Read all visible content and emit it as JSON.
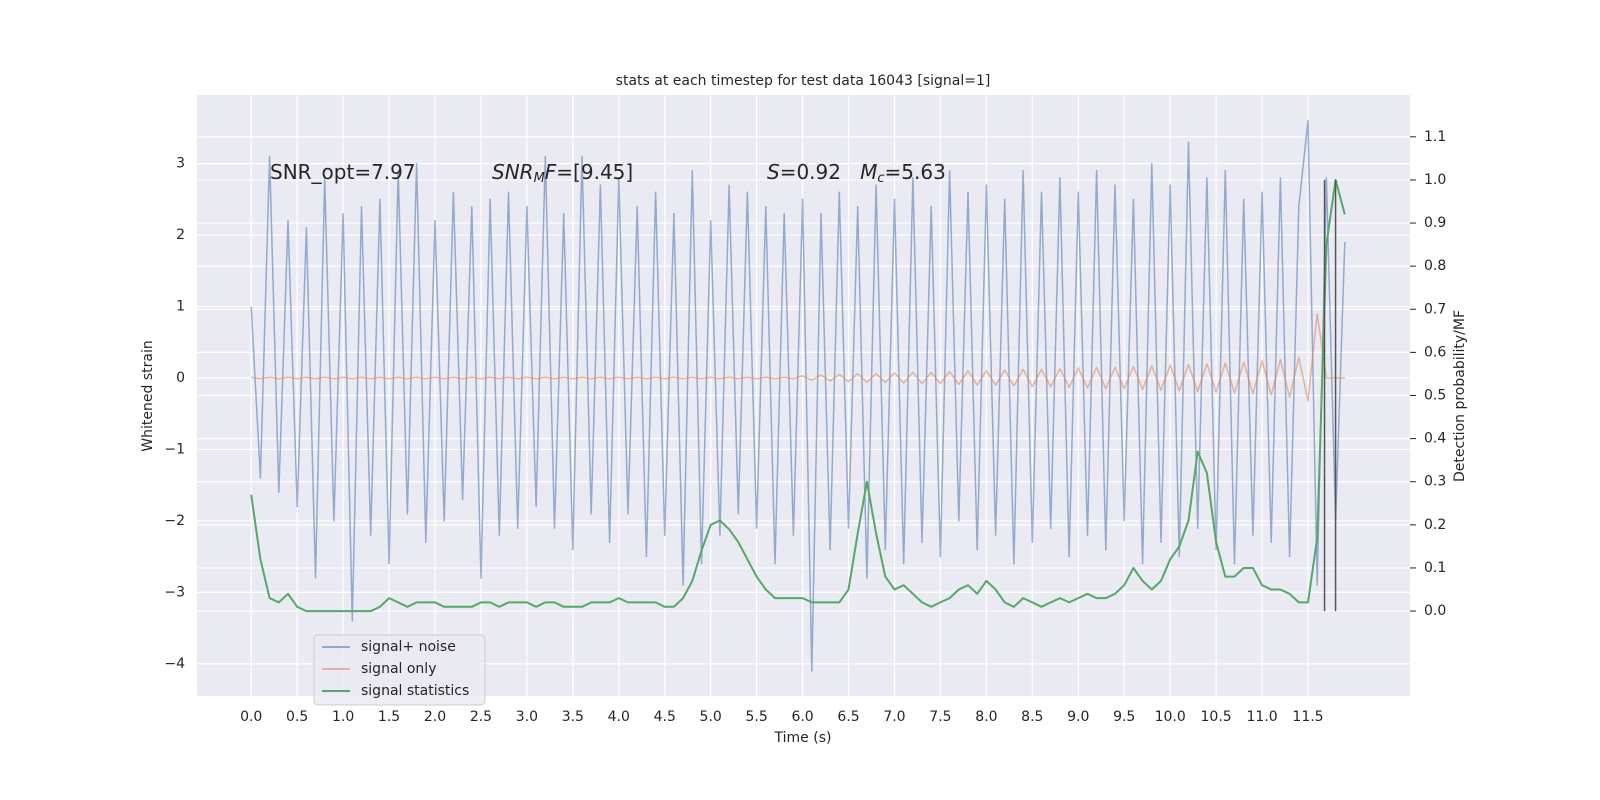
{
  "chart_data": {
    "type": "line",
    "title": "stats at each timestep for test data 16043 [signal=1]",
    "xlabel": "Time (s)",
    "ylabel": "Whitened strain",
    "y2label": "Detection probability/MF",
    "annotations": [
      [
        {
          "text": "SNR_opt=7.97",
          "italic": false,
          "sub": false
        }
      ],
      [
        {
          "text": "SNR",
          "italic": true,
          "sub": false
        },
        {
          "text": "M",
          "italic": true,
          "sub": true
        },
        {
          "text": "F",
          "italic": true,
          "sub": false
        },
        {
          "text": "=[9.45]",
          "italic": false,
          "sub": false
        }
      ],
      [
        {
          "text": "S",
          "italic": true,
          "sub": false
        },
        {
          "text": "=0.92   ",
          "italic": false,
          "sub": false
        },
        {
          "text": "M",
          "italic": true,
          "sub": false
        },
        {
          "text": "c",
          "italic": true,
          "sub": true
        },
        {
          "text": "=5.63",
          "italic": false,
          "sub": false
        }
      ]
    ],
    "x": [
      0.0,
      0.1,
      0.2,
      0.3,
      0.4,
      0.5,
      0.6,
      0.7,
      0.8,
      0.9,
      1.0,
      1.1,
      1.2,
      1.3,
      1.4,
      1.5,
      1.6,
      1.7,
      1.8,
      1.9,
      2.0,
      2.1,
      2.2,
      2.3,
      2.4,
      2.5,
      2.6,
      2.7,
      2.8,
      2.9,
      3.0,
      3.1,
      3.2,
      3.3,
      3.4,
      3.5,
      3.6,
      3.7,
      3.8,
      3.9,
      4.0,
      4.1,
      4.2,
      4.3,
      4.4,
      4.5,
      4.6,
      4.7,
      4.8,
      4.9,
      5.0,
      5.1,
      5.2,
      5.3,
      5.4,
      5.5,
      5.6,
      5.7,
      5.8,
      5.9,
      6.0,
      6.1,
      6.2,
      6.3,
      6.4,
      6.5,
      6.6,
      6.7,
      6.8,
      6.9,
      7.0,
      7.1,
      7.2,
      7.3,
      7.4,
      7.5,
      7.6,
      7.7,
      7.8,
      7.9,
      8.0,
      8.1,
      8.2,
      8.3,
      8.4,
      8.5,
      8.6,
      8.7,
      8.8,
      8.9,
      9.0,
      9.1,
      9.2,
      9.3,
      9.4,
      9.5,
      9.6,
      9.7,
      9.8,
      9.9,
      10.0,
      10.1,
      10.2,
      10.3,
      10.4,
      10.5,
      10.6,
      10.7,
      10.8,
      10.9,
      11.0,
      11.1,
      11.2,
      11.3,
      11.4,
      11.5,
      11.6,
      11.7,
      11.8,
      11.9
    ],
    "series": [
      {
        "name": "signal+ noise",
        "color": "#4c72b0",
        "axis": "y",
        "values": [
          1.0,
          -1.4,
          3.1,
          -1.6,
          2.2,
          -1.8,
          2.1,
          -2.8,
          2.8,
          -2.0,
          2.3,
          -3.4,
          2.4,
          -2.2,
          2.5,
          -2.6,
          2.9,
          -1.9,
          3.0,
          -2.3,
          2.2,
          -2.0,
          2.6,
          -1.7,
          2.4,
          -2.8,
          2.5,
          -2.2,
          2.6,
          -2.1,
          2.4,
          -1.8,
          3.1,
          -2.1,
          2.3,
          -2.4,
          3.1,
          -1.9,
          2.7,
          -2.3,
          2.8,
          -1.9,
          2.4,
          -2.5,
          2.6,
          -2.2,
          2.3,
          -2.9,
          2.9,
          -2.6,
          2.2,
          -2.2,
          2.7,
          -1.9,
          2.6,
          -2.1,
          2.4,
          -2.6,
          2.3,
          -2.2,
          2.5,
          -4.1,
          2.3,
          -2.4,
          2.6,
          -2.1,
          2.4,
          -2.8,
          2.7,
          -2.4,
          2.5,
          -2.6,
          2.8,
          -2.3,
          2.4,
          -2.5,
          2.9,
          -2.0,
          2.6,
          -2.4,
          2.7,
          -2.2,
          2.5,
          -2.6,
          2.9,
          -2.3,
          2.6,
          -2.1,
          2.8,
          -2.5,
          2.6,
          -2.2,
          2.9,
          -2.4,
          2.7,
          -2.0,
          2.5,
          -2.6,
          3.0,
          -2.3,
          2.7,
          -2.5,
          3.3,
          -2.1,
          2.8,
          -2.4,
          2.9,
          -2.6,
          2.5,
          -2.2,
          2.6,
          -2.3,
          2.8,
          -2.5,
          2.4,
          3.6,
          -2.9,
          2.8,
          -2.0,
          1.9
        ]
      },
      {
        "name": "signal only",
        "color": "#dd8452",
        "axis": "y",
        "values": [
          0.01,
          -0.01,
          0.01,
          -0.01,
          0.01,
          -0.01,
          0.01,
          -0.01,
          0.01,
          -0.01,
          0.01,
          -0.01,
          0.01,
          -0.01,
          0.01,
          -0.01,
          0.01,
          -0.01,
          0.01,
          -0.01,
          0.01,
          -0.01,
          0.01,
          -0.01,
          0.01,
          -0.01,
          0.01,
          -0.01,
          0.01,
          -0.01,
          0.01,
          -0.01,
          0.01,
          -0.01,
          0.01,
          -0.01,
          0.01,
          -0.01,
          0.01,
          -0.01,
          0.01,
          -0.01,
          0.01,
          -0.01,
          0.01,
          -0.01,
          0.01,
          -0.01,
          0.01,
          -0.01,
          0.01,
          -0.01,
          0.01,
          -0.01,
          0.01,
          -0.01,
          0.01,
          -0.01,
          0.01,
          -0.01,
          0.03,
          -0.03,
          0.04,
          -0.04,
          0.05,
          -0.05,
          0.06,
          -0.06,
          0.06,
          -0.06,
          0.07,
          -0.07,
          0.08,
          -0.08,
          0.08,
          -0.08,
          0.09,
          -0.09,
          0.1,
          -0.1,
          0.1,
          -0.1,
          0.11,
          -0.11,
          0.12,
          -0.12,
          0.12,
          -0.12,
          0.13,
          -0.13,
          0.14,
          -0.14,
          0.15,
          -0.15,
          0.15,
          -0.15,
          0.16,
          -0.16,
          0.17,
          -0.17,
          0.18,
          -0.18,
          0.19,
          -0.19,
          0.2,
          -0.2,
          0.21,
          -0.21,
          0.22,
          -0.22,
          0.24,
          -0.24,
          0.26,
          -0.27,
          0.29,
          -0.32,
          0.9,
          0.0,
          0.0,
          0.0
        ]
      },
      {
        "name": "signal statistics",
        "color": "#55a868",
        "axis": "y2",
        "values": [
          0.27,
          0.12,
          0.03,
          0.02,
          0.04,
          0.01,
          0.0,
          0.0,
          0.0,
          0.0,
          0.0,
          0.0,
          0.0,
          0.0,
          0.01,
          0.03,
          0.02,
          0.01,
          0.02,
          0.02,
          0.02,
          0.01,
          0.01,
          0.01,
          0.01,
          0.02,
          0.02,
          0.01,
          0.02,
          0.02,
          0.02,
          0.01,
          0.02,
          0.02,
          0.01,
          0.01,
          0.01,
          0.02,
          0.02,
          0.02,
          0.03,
          0.02,
          0.02,
          0.02,
          0.02,
          0.01,
          0.01,
          0.03,
          0.07,
          0.14,
          0.2,
          0.21,
          0.19,
          0.16,
          0.12,
          0.08,
          0.05,
          0.03,
          0.03,
          0.03,
          0.03,
          0.02,
          0.02,
          0.02,
          0.02,
          0.05,
          0.18,
          0.3,
          0.18,
          0.08,
          0.05,
          0.06,
          0.04,
          0.02,
          0.01,
          0.02,
          0.03,
          0.05,
          0.06,
          0.04,
          0.07,
          0.05,
          0.02,
          0.01,
          0.03,
          0.02,
          0.01,
          0.02,
          0.03,
          0.02,
          0.03,
          0.04,
          0.03,
          0.03,
          0.04,
          0.06,
          0.1,
          0.07,
          0.05,
          0.07,
          0.12,
          0.15,
          0.21,
          0.37,
          0.32,
          0.16,
          0.08,
          0.08,
          0.1,
          0.1,
          0.06,
          0.05,
          0.05,
          0.04,
          0.02,
          0.02,
          0.17,
          0.85,
          1.0,
          0.92
        ]
      }
    ],
    "vlines": {
      "x": [
        11.68,
        11.8
      ],
      "y2": [
        0,
        1
      ],
      "color": "#555555"
    },
    "xlim": [
      -0.59,
      12.61
    ],
    "ylim": [
      -4.45,
      3.96
    ],
    "y2lim": [
      -0.197,
      1.197
    ],
    "xticks": [
      {
        "value": 0,
        "label": "0.0"
      },
      {
        "value": 0.5,
        "label": "0.5"
      },
      {
        "value": 1,
        "label": "1.0"
      },
      {
        "value": 1.5,
        "label": "1.5"
      },
      {
        "value": 2,
        "label": "2.0"
      },
      {
        "value": 2.5,
        "label": "2.5"
      },
      {
        "value": 3,
        "label": "3.0"
      },
      {
        "value": 3.5,
        "label": "3.5"
      },
      {
        "value": 4,
        "label": "4.0"
      },
      {
        "value": 4.5,
        "label": "4.5"
      },
      {
        "value": 5,
        "label": "5.0"
      },
      {
        "value": 5.5,
        "label": "5.5"
      },
      {
        "value": 6,
        "label": "6.0"
      },
      {
        "value": 6.5,
        "label": "6.5"
      },
      {
        "value": 7,
        "label": "7.0"
      },
      {
        "value": 7.5,
        "label": "7.5"
      },
      {
        "value": 8,
        "label": "8.0"
      },
      {
        "value": 8.5,
        "label": "8.5"
      },
      {
        "value": 9,
        "label": "9.0"
      },
      {
        "value": 9.5,
        "label": "9.5"
      },
      {
        "value": 10,
        "label": "10.0"
      },
      {
        "value": 10.5,
        "label": "10.5"
      },
      {
        "value": 11,
        "label": "11.0"
      },
      {
        "value": 11.5,
        "label": "11.5"
      }
    ],
    "yticks": [
      {
        "value": -4,
        "label": "−4"
      },
      {
        "value": -3,
        "label": "−3"
      },
      {
        "value": -2,
        "label": "−2"
      },
      {
        "value": -1,
        "label": "−1"
      },
      0,
      1,
      2,
      3
    ],
    "y2ticks": [
      {
        "value": 0,
        "label": "0.0"
      },
      {
        "value": 0.1,
        "label": "0.1"
      },
      {
        "value": 0.2,
        "label": "0.2"
      },
      {
        "value": 0.3,
        "label": "0.3"
      },
      {
        "value": 0.4,
        "label": "0.4"
      },
      {
        "value": 0.5,
        "label": "0.5"
      },
      {
        "value": 0.6,
        "label": "0.6"
      },
      {
        "value": 0.7,
        "label": "0.7"
      },
      {
        "value": 0.8,
        "label": "0.8"
      },
      {
        "value": 0.9,
        "label": "0.9"
      },
      {
        "value": 1,
        "label": "1.0"
      },
      {
        "value": 1.1,
        "label": "1.1"
      }
    ],
    "grid": true,
    "legend": "lower left"
  }
}
